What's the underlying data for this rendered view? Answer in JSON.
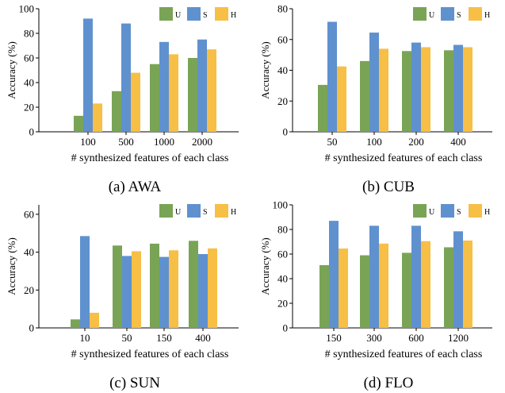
{
  "figure": {
    "colors": {
      "U": "#79a456",
      "S": "#5f91cf",
      "H": "#f7bf45"
    },
    "ylabel": "Accuracy (%)",
    "xlabel": "# synthesized features of each class"
  },
  "chart_data": [
    {
      "type": "bar",
      "caption": "(a) AWA",
      "categories": [
        "100",
        "500",
        "1000",
        "2000"
      ],
      "series": [
        {
          "name": "U",
          "values": [
            13,
            33,
            55,
            60
          ]
        },
        {
          "name": "S",
          "values": [
            92,
            88,
            73,
            75
          ]
        },
        {
          "name": "H",
          "values": [
            23,
            48,
            63,
            67
          ]
        }
      ],
      "xlabel": "# synthesized features of each class",
      "ylabel": "Accuracy (%)",
      "ylim": [
        0,
        100
      ],
      "yticks": [
        0,
        20,
        40,
        60,
        80,
        100
      ],
      "grid": false,
      "legend": "top-right"
    },
    {
      "type": "bar",
      "caption": "(b) CUB",
      "categories": [
        "50",
        "100",
        "200",
        "400"
      ],
      "series": [
        {
          "name": "U",
          "values": [
            30.5,
            46,
            52.5,
            53
          ]
        },
        {
          "name": "S",
          "values": [
            71.5,
            64.5,
            58,
            56.5
          ]
        },
        {
          "name": "H",
          "values": [
            42.5,
            54,
            55,
            55
          ]
        }
      ],
      "xlabel": "# synthesized features of each class",
      "ylabel": "Accuracy (%)",
      "ylim": [
        0,
        80
      ],
      "yticks": [
        0,
        20,
        40,
        60,
        80
      ],
      "grid": false,
      "legend": "top-right"
    },
    {
      "type": "bar",
      "caption": "(c) SUN",
      "categories": [
        "10",
        "50",
        "150",
        "400"
      ],
      "series": [
        {
          "name": "U",
          "values": [
            4.5,
            43.5,
            44.5,
            46
          ]
        },
        {
          "name": "S",
          "values": [
            48.5,
            38,
            37.5,
            39
          ]
        },
        {
          "name": "H",
          "values": [
            8,
            40.5,
            41,
            42
          ]
        }
      ],
      "xlabel": "# synthesized features of each class",
      "ylabel": "Accuracy (%)",
      "ylim": [
        0,
        65
      ],
      "yticks": [
        0,
        20,
        40,
        60
      ],
      "grid": false,
      "legend": "top-right"
    },
    {
      "type": "bar",
      "caption": "(d) FLO",
      "categories": [
        "150",
        "300",
        "600",
        "1200"
      ],
      "series": [
        {
          "name": "U",
          "values": [
            51,
            59,
            61,
            65.5
          ]
        },
        {
          "name": "S",
          "values": [
            87,
            83,
            83,
            78.5
          ]
        },
        {
          "name": "H",
          "values": [
            64.5,
            68.5,
            70.5,
            71
          ]
        }
      ],
      "xlabel": "# synthesized features of each class",
      "ylabel": "Accuracy (%)",
      "ylim": [
        0,
        100
      ],
      "yticks": [
        0,
        20,
        40,
        60,
        80,
        100
      ],
      "grid": false,
      "legend": "top-right"
    }
  ]
}
